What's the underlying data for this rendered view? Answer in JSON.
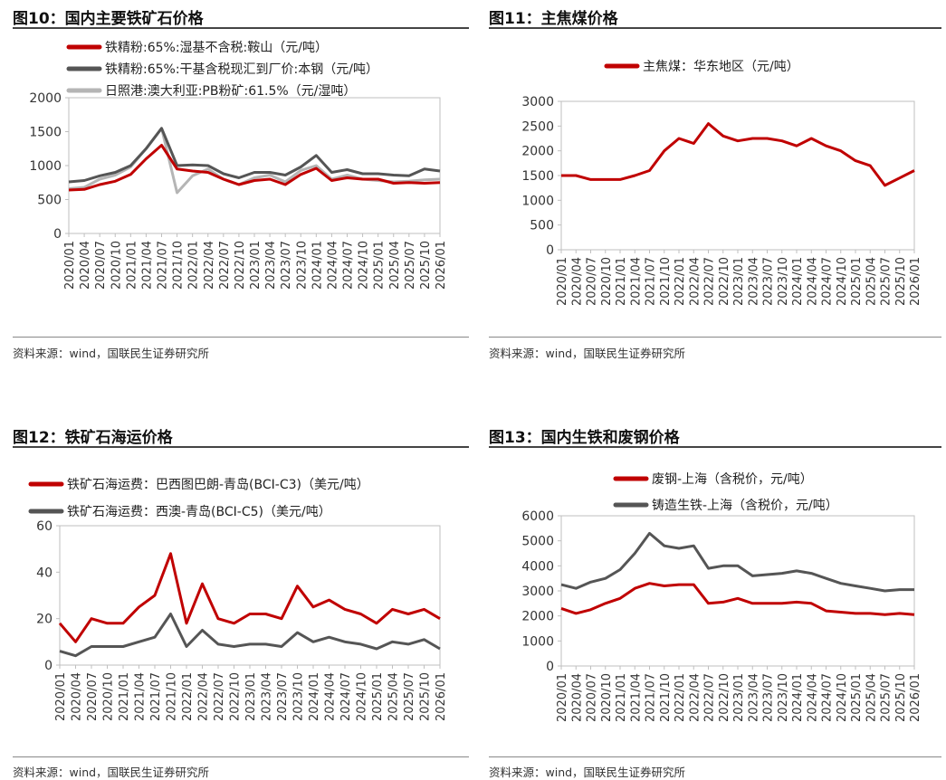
{
  "source_text": "资料来源：wind，国联民生证券研究所",
  "colors": {
    "red": "#c00000",
    "dark_gray": "#555555",
    "light_gray": "#b5b5b5"
  },
  "chart_data": [
    {
      "id": "fig10",
      "type": "line",
      "title": "图10：国内主要铁矿石价格",
      "ylim": [
        0,
        2000
      ],
      "yticks": [
        0,
        500,
        1000,
        1500,
        2000
      ],
      "xlabels": [
        "2020/01",
        "2020/04",
        "2020/07",
        "2020/10",
        "2021/01",
        "2021/04",
        "2021/07",
        "2021/10",
        "2022/01",
        "2022/04",
        "2022/07",
        "2022/10",
        "2023/01",
        "2023/04",
        "2023/07",
        "2023/10",
        "2024/01",
        "2024/04",
        "2024/07",
        "2024/10",
        "2025/01",
        "2025/04",
        "2025/07",
        "2025/10",
        "2026/01"
      ],
      "legend_position": "top-left",
      "series": [
        {
          "name": "铁精粉:65%:湿基不含税:鞍山（元/吨）",
          "color": "#c00000",
          "x": [
            0,
            1,
            2,
            3,
            4,
            5,
            6,
            7,
            8,
            9,
            10,
            11,
            12,
            13,
            14,
            15,
            16,
            17,
            18,
            19,
            20,
            21,
            22,
            23,
            24
          ],
          "y": [
            640,
            650,
            720,
            770,
            870,
            1100,
            1300,
            950,
            920,
            900,
            800,
            720,
            780,
            800,
            720,
            870,
            960,
            780,
            820,
            800,
            800,
            740,
            750,
            740,
            750
          ]
        },
        {
          "name": "铁精粉:65%:干基含税现汇到厂价:本钢（元/吨）",
          "color": "#555555",
          "x": [
            0,
            1,
            2,
            3,
            4,
            5,
            6,
            7,
            8,
            9,
            10,
            11,
            12,
            13,
            14,
            15,
            16,
            17,
            18,
            19,
            20,
            21,
            22,
            23,
            24
          ],
          "y": [
            760,
            780,
            850,
            900,
            1000,
            1250,
            1550,
            1000,
            1010,
            1000,
            880,
            820,
            900,
            900,
            860,
            980,
            1150,
            900,
            940,
            880,
            880,
            860,
            850,
            950,
            920
          ]
        },
        {
          "name": "日照港:澳大利亚:PB粉矿:61.5%（元/湿吨）",
          "color": "#b5b5b5",
          "x": [
            0,
            1,
            2,
            3,
            4,
            5,
            6,
            7,
            8,
            9,
            10,
            11,
            12,
            13,
            14,
            15,
            16,
            17,
            18,
            19,
            20,
            21,
            22,
            23,
            24
          ],
          "y": [
            660,
            680,
            800,
            860,
            980,
            1250,
            1550,
            600,
            850,
            950,
            800,
            720,
            820,
            860,
            760,
            930,
            1000,
            800,
            860,
            800,
            780,
            760,
            770,
            790,
            800
          ]
        }
      ]
    },
    {
      "id": "fig11",
      "type": "line",
      "title": "图11：主焦煤价格",
      "ylim": [
        0,
        3000
      ],
      "yticks": [
        0,
        500,
        1000,
        1500,
        2000,
        2500,
        3000
      ],
      "xlabels": [
        "2020/01",
        "2020/04",
        "2020/07",
        "2020/10",
        "2021/01",
        "2021/04",
        "2021/07",
        "2021/10",
        "2022/01",
        "2022/04",
        "2022/07",
        "2022/10",
        "2023/01",
        "2023/04",
        "2023/07",
        "2023/10",
        "2024/01",
        "2024/04",
        "2024/07",
        "2024/10",
        "2025/01",
        "2025/04",
        "2025/07",
        "2025/10",
        "2026/01"
      ],
      "legend_position": "top-center",
      "series": [
        {
          "name": "主焦煤：华东地区（元/吨）",
          "color": "#c00000",
          "x": [
            0,
            1,
            2,
            3,
            4,
            5,
            6,
            7,
            8,
            9,
            10,
            11,
            12,
            13,
            14,
            15,
            16,
            17,
            18,
            19,
            20,
            21,
            22,
            23,
            24
          ],
          "y": [
            1500,
            1500,
            1420,
            1420,
            1420,
            1500,
            1600,
            2000,
            2250,
            2150,
            2550,
            2300,
            2200,
            2250,
            2250,
            2200,
            2100,
            2250,
            2100,
            2000,
            1800,
            1700,
            1300,
            1450,
            1600
          ]
        }
      ]
    },
    {
      "id": "fig12",
      "type": "line",
      "title": "图12：铁矿石海运价格",
      "ylim": [
        0,
        60
      ],
      "yticks": [
        0,
        20,
        40,
        60
      ],
      "xlabels": [
        "2020/01",
        "2020/04",
        "2020/07",
        "2020/10",
        "2021/01",
        "2021/04",
        "2021/07",
        "2021/10",
        "2022/01",
        "2022/04",
        "2022/07",
        "2022/10",
        "2023/01",
        "2023/04",
        "2023/07",
        "2023/10",
        "2024/01",
        "2024/04",
        "2024/07",
        "2024/10",
        "2025/01",
        "2025/04",
        "2025/07",
        "2025/10",
        "2026/01"
      ],
      "legend_position": "top-left",
      "series": [
        {
          "name": "铁矿石海运费：巴西图巴朗-青岛(BCI-C3)（美元/吨）",
          "color": "#c00000",
          "x": [
            0,
            1,
            2,
            3,
            4,
            5,
            6,
            7,
            8,
            9,
            10,
            11,
            12,
            13,
            14,
            15,
            16,
            17,
            18,
            19,
            20,
            21,
            22,
            23,
            24
          ],
          "y": [
            18,
            10,
            20,
            18,
            18,
            25,
            30,
            48,
            18,
            35,
            20,
            18,
            22,
            22,
            20,
            34,
            25,
            28,
            24,
            22,
            18,
            24,
            22,
            24,
            20
          ]
        },
        {
          "name": "铁矿石海运费：西澳-青岛(BCI-C5)（美元/吨）",
          "color": "#555555",
          "x": [
            0,
            1,
            2,
            3,
            4,
            5,
            6,
            7,
            8,
            9,
            10,
            11,
            12,
            13,
            14,
            15,
            16,
            17,
            18,
            19,
            20,
            21,
            22,
            23,
            24
          ],
          "y": [
            6,
            4,
            8,
            8,
            8,
            10,
            12,
            22,
            8,
            15,
            9,
            8,
            9,
            9,
            8,
            14,
            10,
            12,
            10,
            9,
            7,
            10,
            9,
            11,
            7
          ]
        }
      ]
    },
    {
      "id": "fig13",
      "type": "line",
      "title": "图13：国内生铁和废钢价格",
      "ylim": [
        0,
        6000
      ],
      "yticks": [
        0,
        1000,
        2000,
        3000,
        4000,
        5000,
        6000
      ],
      "xlabels": [
        "2020/01",
        "2020/04",
        "2020/07",
        "2020/10",
        "2021/01",
        "2021/04",
        "2021/07",
        "2021/10",
        "2022/01",
        "2022/04",
        "2022/07",
        "2022/10",
        "2023/01",
        "2023/04",
        "2023/07",
        "2023/10",
        "2024/01",
        "2024/04",
        "2024/07",
        "2024/10",
        "2025/01",
        "2025/04",
        "2025/07",
        "2025/10",
        "2026/01"
      ],
      "legend_position": "top-center",
      "series": [
        {
          "name": "废钢-上海（含税价，元/吨）",
          "color": "#c00000",
          "x": [
            0,
            1,
            2,
            3,
            4,
            5,
            6,
            7,
            8,
            9,
            10,
            11,
            12,
            13,
            14,
            15,
            16,
            17,
            18,
            19,
            20,
            21,
            22,
            23,
            24
          ],
          "y": [
            2300,
            2100,
            2250,
            2500,
            2700,
            3100,
            3300,
            3200,
            3250,
            3250,
            2500,
            2550,
            2700,
            2500,
            2500,
            2500,
            2550,
            2500,
            2200,
            2150,
            2100,
            2100,
            2050,
            2100,
            2050
          ]
        },
        {
          "name": "铸造生铁-上海（含税价，元/吨）",
          "color": "#555555",
          "x": [
            0,
            1,
            2,
            3,
            4,
            5,
            6,
            7,
            8,
            9,
            10,
            11,
            12,
            13,
            14,
            15,
            16,
            17,
            18,
            19,
            20,
            21,
            22,
            23,
            24
          ],
          "y": [
            3250,
            3100,
            3350,
            3500,
            3850,
            4500,
            5300,
            4800,
            4700,
            4800,
            3900,
            4000,
            4000,
            3600,
            3650,
            3700,
            3800,
            3700,
            3500,
            3300,
            3200,
            3100,
            3000,
            3050,
            3050
          ]
        }
      ]
    }
  ]
}
